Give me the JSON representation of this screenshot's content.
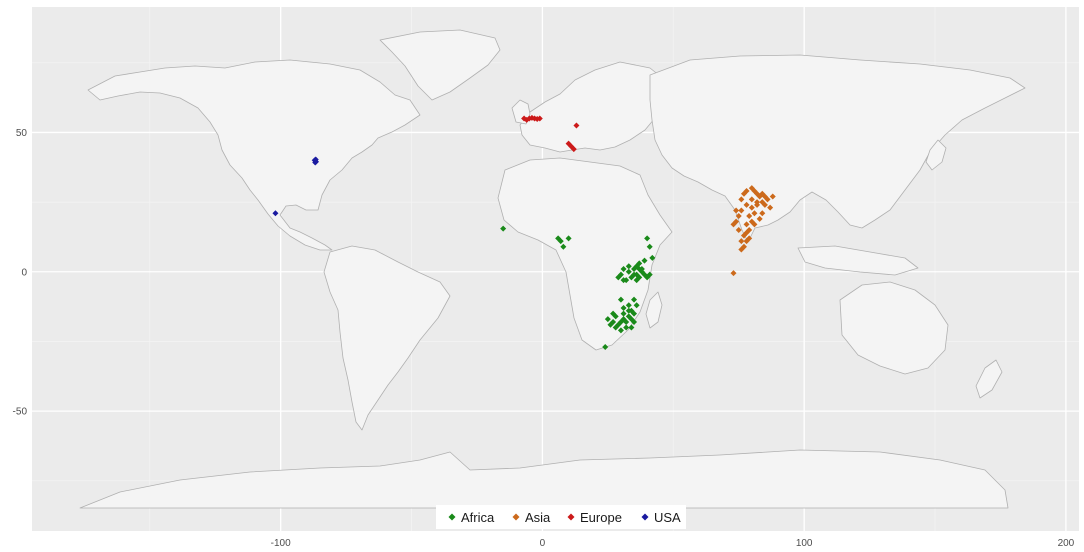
{
  "chart_data": {
    "type": "scatter",
    "x_axis": {
      "range": [
        -195,
        205
      ],
      "ticks": [
        -100,
        0,
        100,
        200
      ]
    },
    "y_axis": {
      "range": [
        -93,
        95
      ],
      "ticks": [
        50,
        0,
        -50
      ]
    },
    "grid": "on",
    "legend_position": "bottom",
    "colors": {
      "panel": "#ebebeb",
      "grid_major": "#ffffff",
      "land_fill": "#f4f4f4",
      "land_border": "#b0b0b0"
    },
    "series": [
      {
        "name": "Africa",
        "color": "#1a8a1a",
        "points": [
          [
            -15,
            15.5
          ],
          [
            6,
            12
          ],
          [
            7,
            11
          ],
          [
            10,
            12
          ],
          [
            8,
            9
          ],
          [
            40,
            12
          ],
          [
            41,
            9
          ],
          [
            42,
            5
          ],
          [
            39,
            4
          ],
          [
            37,
            1
          ],
          [
            38,
            0
          ],
          [
            35,
            -1
          ],
          [
            33,
            0
          ],
          [
            31,
            1
          ],
          [
            30,
            -1
          ],
          [
            32,
            -3
          ],
          [
            34,
            -2
          ],
          [
            36,
            2
          ],
          [
            39,
            -1
          ],
          [
            40,
            -2
          ],
          [
            41,
            -1
          ],
          [
            36,
            -3
          ],
          [
            37,
            -2
          ],
          [
            29,
            -2
          ],
          [
            31,
            -3
          ],
          [
            33,
            2
          ],
          [
            35,
            1
          ],
          [
            36,
            -1
          ],
          [
            38,
            1
          ],
          [
            37,
            3
          ],
          [
            30,
            -10
          ],
          [
            33,
            -12
          ],
          [
            35,
            -10
          ],
          [
            34,
            -14
          ],
          [
            33,
            -16
          ],
          [
            31,
            -15
          ],
          [
            28,
            -16
          ],
          [
            27,
            -18
          ],
          [
            29,
            -19
          ],
          [
            31,
            -17
          ],
          [
            32,
            -20
          ],
          [
            34,
            -20
          ],
          [
            35,
            -18
          ],
          [
            30,
            -21
          ],
          [
            28,
            -20
          ],
          [
            27,
            -15
          ],
          [
            25,
            -17
          ],
          [
            26,
            -19
          ],
          [
            33,
            -14
          ],
          [
            35,
            -15
          ],
          [
            34,
            -17
          ],
          [
            32,
            -18
          ],
          [
            30,
            -18
          ],
          [
            31,
            -13
          ],
          [
            36,
            -12
          ],
          [
            24,
            -27
          ]
        ]
      },
      {
        "name": "Asia",
        "color": "#cc6a1c",
        "points": [
          [
            73,
            -0.5
          ],
          [
            73,
            17
          ],
          [
            74,
            22
          ],
          [
            75,
            20
          ],
          [
            76,
            26
          ],
          [
            77,
            28
          ],
          [
            78,
            29
          ],
          [
            80,
            30
          ],
          [
            81,
            29
          ],
          [
            82,
            28
          ],
          [
            84,
            28
          ],
          [
            85,
            27
          ],
          [
            86,
            26
          ],
          [
            83,
            27
          ],
          [
            84,
            25
          ],
          [
            82,
            24
          ],
          [
            80,
            23
          ],
          [
            81,
            21
          ],
          [
            79,
            20
          ],
          [
            80,
            18
          ],
          [
            78,
            17
          ],
          [
            79,
            15
          ],
          [
            77,
            13
          ],
          [
            78,
            11
          ],
          [
            76,
            11
          ],
          [
            77,
            9
          ],
          [
            76,
            8
          ],
          [
            78,
            14
          ],
          [
            75,
            15
          ],
          [
            74,
            18
          ],
          [
            76,
            22
          ],
          [
            78,
            24
          ],
          [
            80,
            26
          ],
          [
            82,
            25
          ],
          [
            85,
            24
          ],
          [
            87,
            23
          ],
          [
            84,
            21
          ],
          [
            83,
            19
          ],
          [
            81,
            17
          ],
          [
            79,
            12
          ],
          [
            88,
            27
          ]
        ]
      },
      {
        "name": "Europe",
        "color": "#cc1a1a",
        "points": [
          [
            -7,
            55
          ],
          [
            -6,
            54.5
          ],
          [
            -5,
            55
          ],
          [
            -4,
            55.2
          ],
          [
            -3,
            55
          ],
          [
            -2,
            54.8
          ],
          [
            -1,
            55
          ],
          [
            13,
            52.5
          ],
          [
            10,
            46
          ],
          [
            11,
            45
          ],
          [
            12,
            44
          ]
        ]
      },
      {
        "name": "USA",
        "color": "#1a1aa0",
        "points": [
          [
            -87,
            40
          ],
          [
            -86.5,
            39.5
          ],
          [
            -86.6,
            40.3
          ],
          [
            -86.8,
            39.2
          ],
          [
            -102,
            21
          ]
        ]
      }
    ]
  }
}
